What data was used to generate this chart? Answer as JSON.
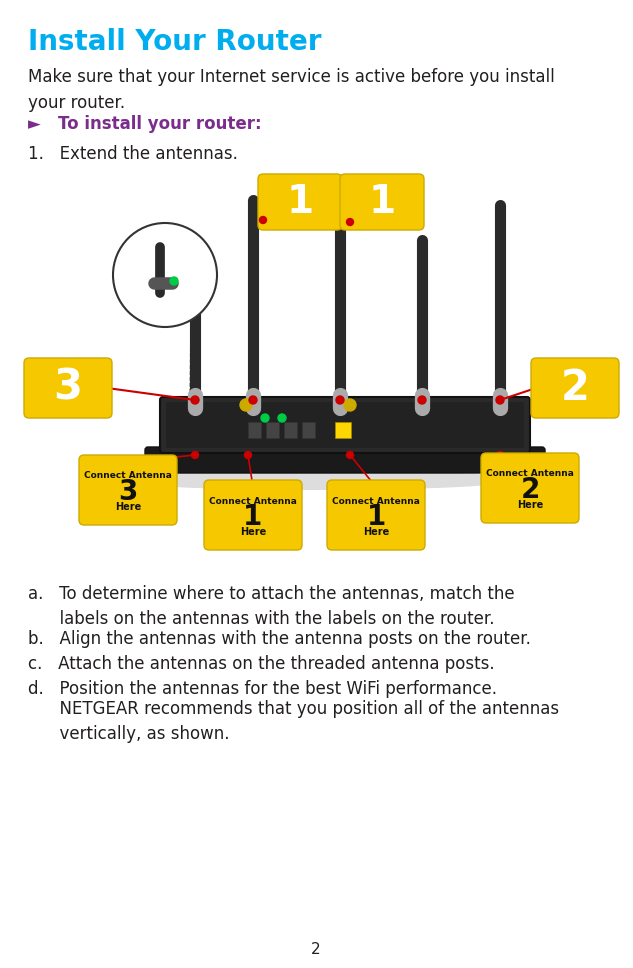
{
  "title": "Install Your Router",
  "title_color": "#00AEEF",
  "title_fontsize": 20,
  "page_number": "2",
  "bg_color": "#FFFFFF",
  "body_text_1": "Make sure that your Internet service is active before you install\nyour router.",
  "body_fontsize": 12,
  "body_color": "#231F20",
  "section_header": "►   To install your router:",
  "section_header_color": "#7B2D8B",
  "section_header_fontsize": 12,
  "step1_text": "1.   Extend the antennas.",
  "step1_fontsize": 12,
  "sub_steps_a": "a.   To determine where to attach the antennas, match the\n      labels on the antennas with the labels on the router.",
  "sub_steps_b": "b.   Align the antennas with the antenna posts on the router.",
  "sub_steps_c": "c.   Attach the antennas on the threaded antenna posts.",
  "sub_steps_d1": "d.   Position the antennas for the best WiFi performance.",
  "sub_steps_d2": "      NETGEAR recommends that you position all of the antennas\n      vertically, as shown.",
  "yellow_color": "#F5C800",
  "label_color": "#231F20",
  "red_line_color": "#CC0000",
  "router_color": "#2A2A2A",
  "antenna_color": "#2A2A2A",
  "white": "#FFFFFF",
  "dark_gray": "#1A1A1A",
  "green_led": "#00CC44"
}
